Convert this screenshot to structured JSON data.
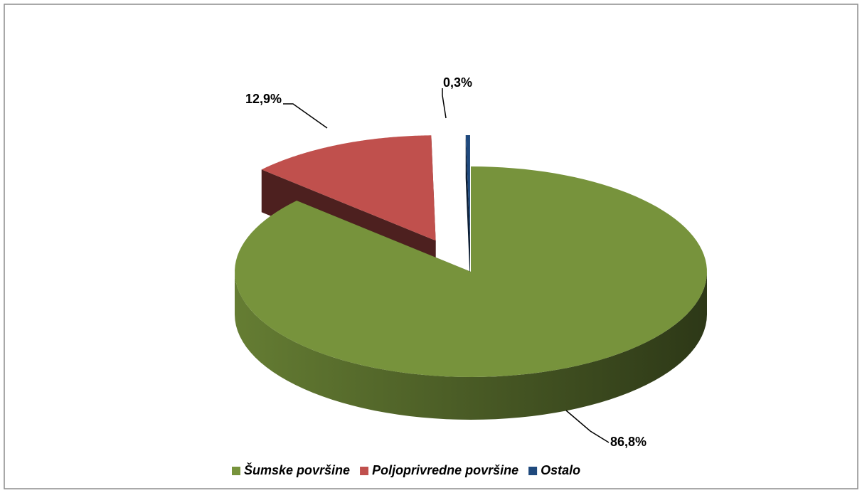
{
  "chart_data": {
    "type": "pie3d",
    "categories": [
      "Šumske površine",
      "Poljoprivredne površine",
      "Ostalo"
    ],
    "values": [
      86.8,
      12.9,
      0.3
    ],
    "value_labels": [
      "86,8%",
      "12,9%",
      "0,3%"
    ],
    "colors": [
      "#77933c",
      "#c0504d",
      "#1f497d"
    ],
    "legend": "bottom"
  }
}
